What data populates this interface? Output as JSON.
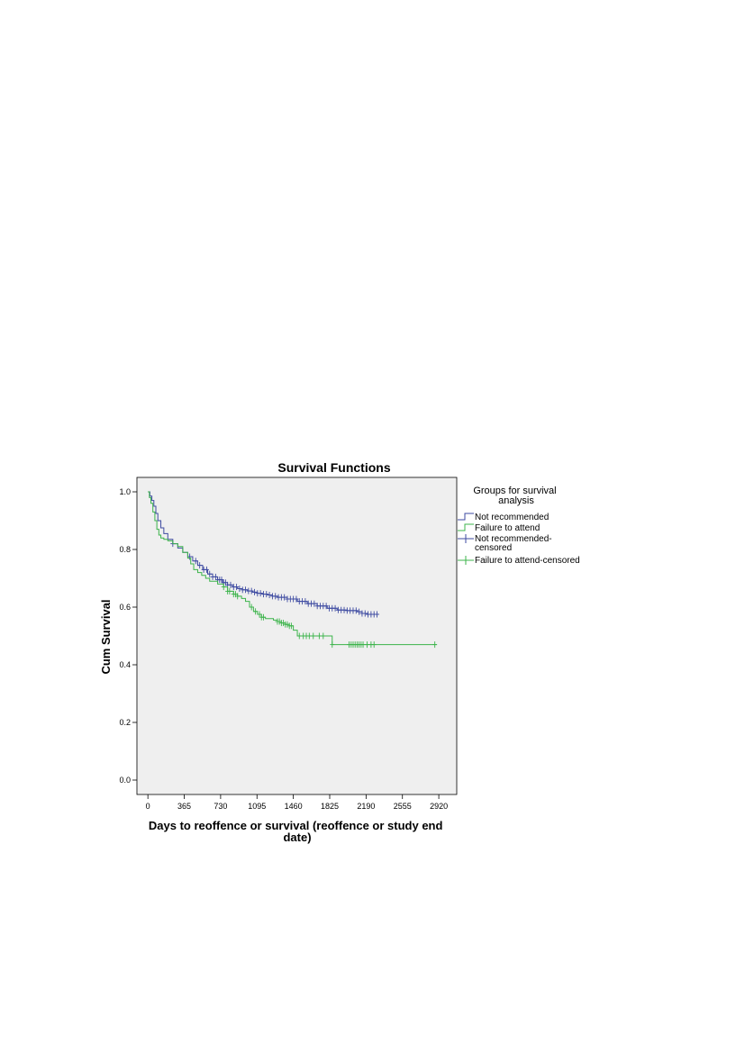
{
  "chart_data": {
    "type": "line",
    "title": "Survival Functions",
    "xlabel_lines": [
      "Days to reoffence or survival (reoffence or study end",
      "date)"
    ],
    "ylabel": "Cum Survival",
    "xlim": [
      -110,
      3100
    ],
    "ylim": [
      -0.05,
      1.05
    ],
    "xticks": [
      0,
      365,
      730,
      1095,
      1460,
      1825,
      2190,
      2555,
      2920
    ],
    "yticks": [
      0.0,
      0.2,
      0.4,
      0.6,
      0.8,
      1.0
    ],
    "ytick_labels": [
      "0.0",
      "0.2",
      "0.4",
      "0.6",
      "0.8",
      "1.0"
    ],
    "grid": false,
    "plot_background": "#efefef",
    "legend": {
      "title_lines": [
        "Groups for survival",
        "analysis"
      ],
      "placement": "right",
      "entries": [
        {
          "label_lines": [
            "Not recommended"
          ],
          "kind": "line",
          "color": "#3d4aa1"
        },
        {
          "label_lines": [
            "Failure to attend"
          ],
          "kind": "line",
          "color": "#3cb44b"
        },
        {
          "label_lines": [
            "Not recommended-",
            "censored"
          ],
          "kind": "censor",
          "color": "#3d4aa1"
        },
        {
          "label_lines": [
            "Failure to attend-censored"
          ],
          "kind": "censor",
          "color": "#3cb44b"
        }
      ]
    },
    "series": [
      {
        "name": "Not recommended",
        "color": "#3d4aa1",
        "x": [
          0,
          20,
          40,
          60,
          80,
          100,
          130,
          160,
          200,
          250,
          300,
          350,
          400,
          450,
          500,
          550,
          600,
          650,
          700,
          750,
          800,
          850,
          900,
          950,
          1000,
          1050,
          1100,
          1150,
          1200,
          1250,
          1300,
          1400,
          1500,
          1600,
          1700,
          1800,
          1900,
          2000,
          2100,
          2150,
          2200,
          2300
        ],
        "y": [
          1.0,
          0.985,
          0.97,
          0.95,
          0.925,
          0.9,
          0.875,
          0.855,
          0.835,
          0.82,
          0.805,
          0.79,
          0.775,
          0.76,
          0.745,
          0.73,
          0.715,
          0.705,
          0.695,
          0.685,
          0.677,
          0.67,
          0.664,
          0.66,
          0.656,
          0.652,
          0.648,
          0.645,
          0.642,
          0.638,
          0.634,
          0.628,
          0.62,
          0.612,
          0.604,
          0.596,
          0.59,
          0.588,
          0.584,
          0.578,
          0.575,
          0.575
        ],
        "censored_x": [
          250,
          420,
          480,
          520,
          560,
          590,
          620,
          650,
          680,
          700,
          720,
          740,
          760,
          780,
          800,
          830,
          860,
          890,
          920,
          950,
          980,
          1010,
          1040,
          1070,
          1100,
          1130,
          1160,
          1190,
          1220,
          1250,
          1280,
          1310,
          1340,
          1370,
          1400,
          1430,
          1460,
          1490,
          1520,
          1550,
          1580,
          1610,
          1640,
          1670,
          1700,
          1730,
          1760,
          1790,
          1820,
          1850,
          1880,
          1910,
          1940,
          1970,
          2000,
          2030,
          2060,
          2090,
          2120,
          2150,
          2180,
          2210,
          2240,
          2270,
          2300
        ]
      },
      {
        "name": "Failure to attend",
        "color": "#3cb44b",
        "x": [
          0,
          15,
          30,
          50,
          70,
          90,
          110,
          130,
          160,
          200,
          250,
          300,
          350,
          400,
          430,
          460,
          500,
          540,
          580,
          620,
          700,
          760,
          800,
          860,
          900,
          940,
          980,
          1020,
          1060,
          1100,
          1140,
          1180,
          1220,
          1260,
          1300,
          1340,
          1380,
          1420,
          1460,
          1500,
          1540,
          1600,
          1700,
          1800,
          1850,
          1870,
          2000,
          2200,
          2400,
          2600,
          2800,
          2900
        ],
        "y": [
          1.0,
          0.98,
          0.96,
          0.93,
          0.9,
          0.87,
          0.85,
          0.84,
          0.835,
          0.83,
          0.82,
          0.81,
          0.79,
          0.77,
          0.75,
          0.73,
          0.72,
          0.71,
          0.7,
          0.69,
          0.68,
          0.67,
          0.655,
          0.645,
          0.638,
          0.63,
          0.62,
          0.6,
          0.585,
          0.575,
          0.565,
          0.56,
          0.56,
          0.555,
          0.55,
          0.545,
          0.54,
          0.535,
          0.52,
          0.5,
          0.5,
          0.5,
          0.5,
          0.5,
          0.47,
          0.47,
          0.47,
          0.47,
          0.47,
          0.47,
          0.47,
          0.47
        ],
        "censored_x": [
          760,
          800,
          820,
          860,
          880,
          900,
          1040,
          1080,
          1120,
          1140,
          1160,
          1300,
          1320,
          1340,
          1360,
          1380,
          1400,
          1420,
          1440,
          1520,
          1560,
          1590,
          1620,
          1660,
          1720,
          1760,
          1850,
          2020,
          2040,
          2060,
          2080,
          2100,
          2120,
          2140,
          2160,
          2200,
          2240,
          2270,
          2880
        ]
      }
    ]
  }
}
